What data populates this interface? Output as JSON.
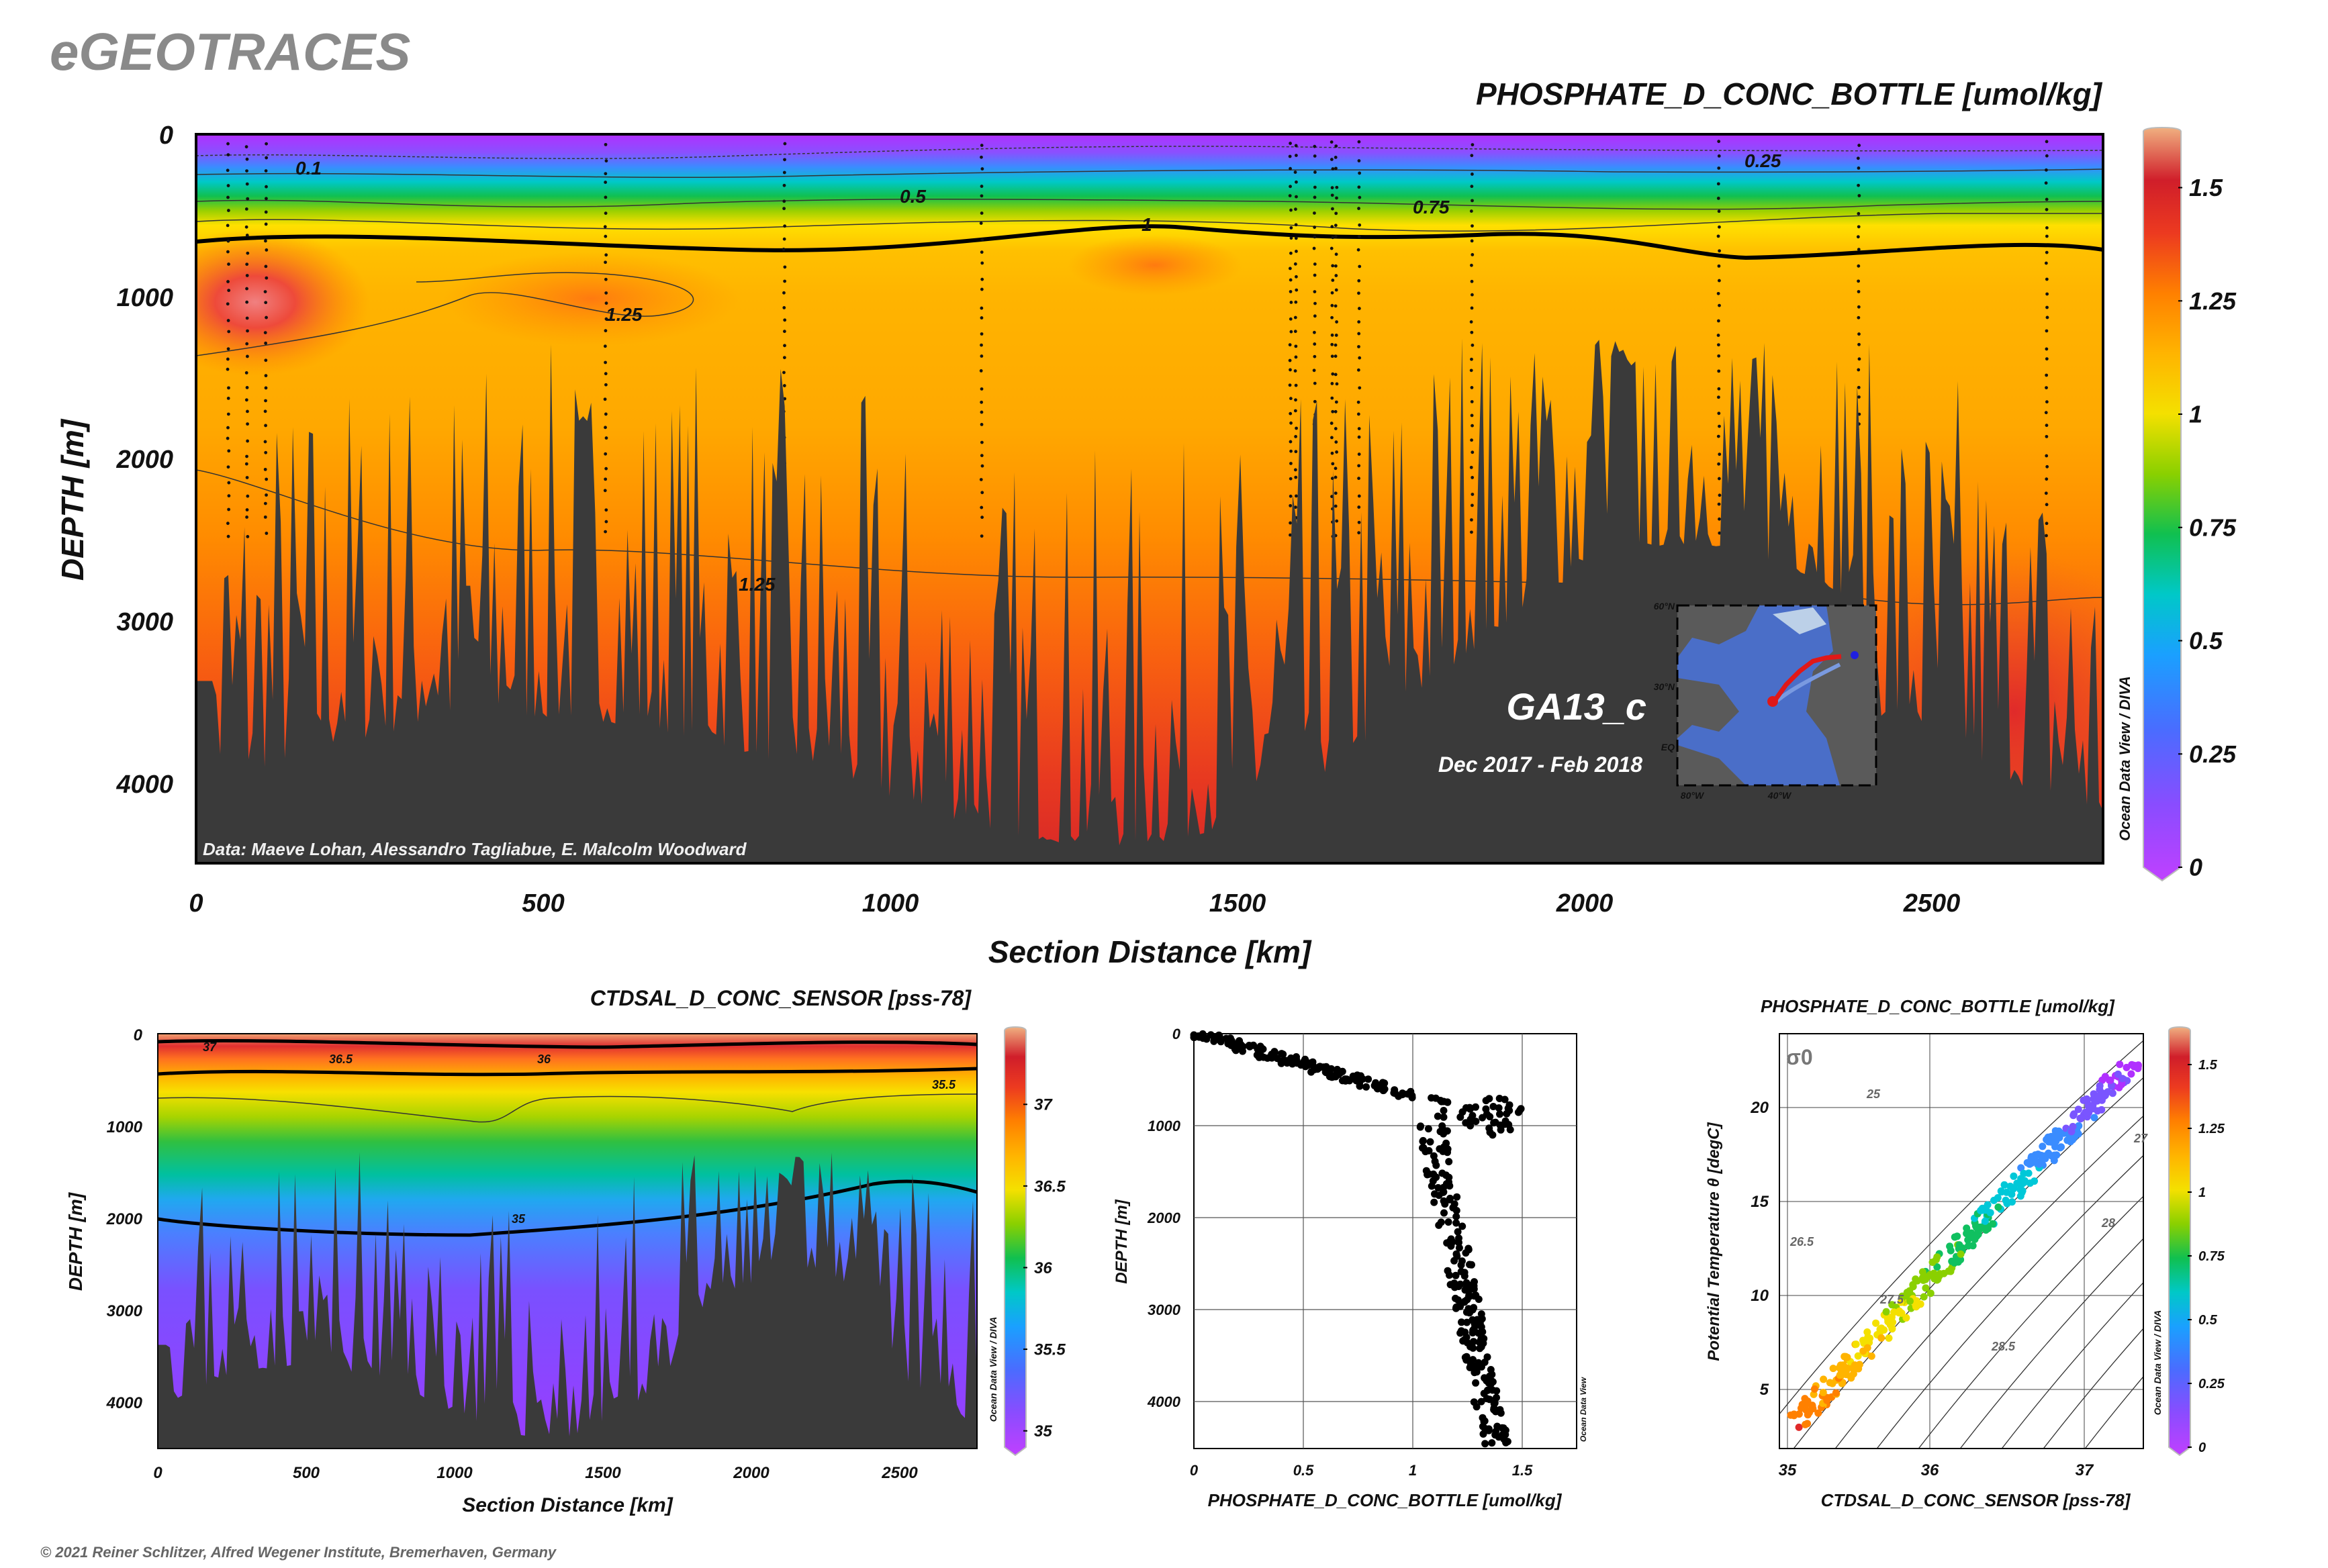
{
  "brand": "eGEOTRACES",
  "footer": "© 2021 Reiner Schlitzer, Alfred Wegener Institute, Bremerhaven, Germany",
  "odv_label": "Ocean Data View / DIVA",
  "odv_label_short": "Ocean Data View",
  "colors": {
    "terrain": "#3a3a3a",
    "colormap": [
      "#b030ff",
      "#7a55ff",
      "#3a8cff",
      "#00c8d8",
      "#00c060",
      "#8ad000",
      "#f4e000",
      "#ffb800",
      "#ff8000",
      "#f04020",
      "#d01e2a",
      "#f0a070"
    ]
  },
  "chart_data": [
    {
      "id": "main-section",
      "type": "heatmap",
      "title": "PHOSPHATE_D_CONC_BOTTLE [umol/kg]",
      "xlabel": "Section Distance [km]",
      "ylabel": "DEPTH [m]",
      "xlim": [
        0,
        2780
      ],
      "ylim": [
        4500,
        0
      ],
      "xticks": [
        "0",
        "500",
        "1000",
        "1500",
        "2000",
        "2500"
      ],
      "yticks": [
        "0",
        "1000",
        "2000",
        "3000",
        "4000"
      ],
      "colorbar": {
        "min": 0,
        "max": 1.6,
        "ticks": [
          "0",
          "0.25",
          "0.5",
          "0.75",
          "1",
          "1.25",
          "1.5"
        ]
      },
      "contour_labels": [
        "0.1",
        "0.25",
        "0.5",
        "0.75",
        "1",
        "1.25",
        "1.25"
      ],
      "cruise": "GA13_c",
      "period": "Dec 2017 - Feb 2018",
      "credit": "Data: Maeve Lohan, Alessandro Tagliabue, E. Malcolm Woodward",
      "inset_map": {
        "lat_labels": [
          "60°N",
          "30°N",
          "EQ"
        ],
        "lon_labels": [
          "80°W",
          "40°W"
        ]
      }
    },
    {
      "id": "salinity-section",
      "type": "heatmap",
      "title": "CTDSAL_D_CONC_SENSOR [pss-78]",
      "xlabel": "Section Distance [km]",
      "ylabel": "DEPTH [m]",
      "xlim": [
        0,
        2780
      ],
      "ylim": [
        4500,
        0
      ],
      "xticks": [
        "0",
        "500",
        "1000",
        "1500",
        "2000",
        "2500"
      ],
      "yticks": [
        "0",
        "1000",
        "2000",
        "3000",
        "4000"
      ],
      "colorbar": {
        "min": 34.9,
        "max": 37.4,
        "ticks": [
          "35",
          "35.5",
          "36",
          "36.5",
          "37"
        ]
      },
      "contour_labels": [
        "37",
        "36.5",
        "36",
        "35.5",
        "35"
      ]
    },
    {
      "id": "phosphate-profile",
      "type": "scatter",
      "title": "",
      "xlabel": "PHOSPHATE_D_CONC_BOTTLE [umol/kg]",
      "ylabel": "DEPTH [m]",
      "xlim": [
        0,
        1.75
      ],
      "ylim": [
        4500,
        0
      ],
      "xticks": [
        "0",
        "0.5",
        "1",
        "1.5"
      ],
      "yticks": [
        "0",
        "1000",
        "2000",
        "3000",
        "4000"
      ]
    },
    {
      "id": "ts-diagram",
      "type": "scatter",
      "title": "PHOSPHATE_D_CONC_BOTTLE [umol/kg]",
      "xlabel": "CTDSAL_D_CONC_SENSOR [pss-78]",
      "ylabel": "Potential Temperature θ [degC]",
      "xlim": [
        34.85,
        37.4
      ],
      "ylim": [
        2,
        24
      ],
      "xticks": [
        "35",
        "36",
        "37"
      ],
      "yticks": [
        "5",
        "10",
        "15",
        "20"
      ],
      "sigma_label": "σ0",
      "isopycnal_labels": [
        "25",
        "26.5",
        "27.5",
        "28.5",
        "28",
        "27"
      ],
      "colorbar": {
        "min": 0,
        "max": 1.6,
        "ticks": [
          "0",
          "0.25",
          "0.5",
          "0.75",
          "1",
          "1.25",
          "1.5"
        ]
      }
    }
  ]
}
